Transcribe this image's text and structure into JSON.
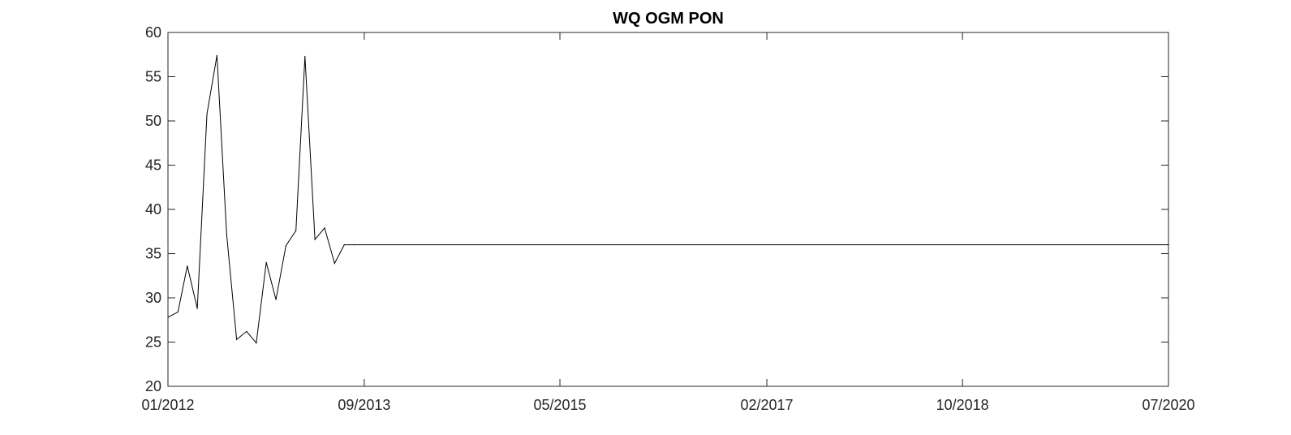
{
  "chart_data": {
    "type": "line",
    "title": "WQ OGM PON",
    "xlabel": "",
    "ylabel": "",
    "x_is_date": true,
    "xlim": [
      "2012-01-01",
      "2020-07-01"
    ],
    "ylim": [
      20,
      60
    ],
    "x_ticks": [
      {
        "value": "2012-01-01",
        "label": "01/2012"
      },
      {
        "value": "2013-09-01",
        "label": "09/2013"
      },
      {
        "value": "2015-05-01",
        "label": "05/2015"
      },
      {
        "value": "2017-02-01",
        "label": "02/2017"
      },
      {
        "value": "2018-10-01",
        "label": "10/2018"
      },
      {
        "value": "2020-07-01",
        "label": "07/2020"
      }
    ],
    "y_ticks": [
      20,
      25,
      30,
      35,
      40,
      45,
      50,
      55,
      60
    ],
    "grid": false,
    "box": true,
    "series": [
      {
        "color": "#000000",
        "x": [
          "2012-01-01",
          "2012-02-01",
          "2012-03-01",
          "2012-04-01",
          "2012-05-01",
          "2012-06-01",
          "2012-07-01",
          "2012-08-01",
          "2012-09-01",
          "2012-10-01",
          "2012-11-01",
          "2012-12-01",
          "2013-01-01",
          "2013-02-01",
          "2013-03-01",
          "2013-04-01",
          "2013-05-01",
          "2013-06-01",
          "2013-07-01",
          "2013-08-01",
          "2020-07-01"
        ],
        "values": [
          27.8,
          28.4,
          33.6,
          28.8,
          50.8,
          57.4,
          37.2,
          25.3,
          26.2,
          24.9,
          34.0,
          29.8,
          35.9,
          37.6,
          57.3,
          36.6,
          37.9,
          33.9,
          36.0,
          36.0,
          36.0
        ]
      }
    ]
  }
}
